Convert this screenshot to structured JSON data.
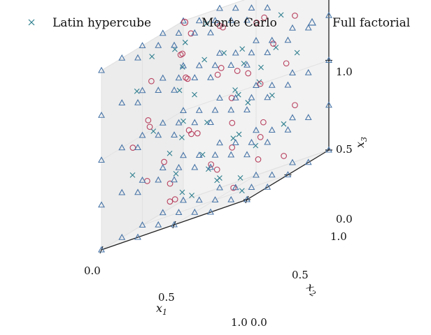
{
  "chart_data": {
    "type": "scatter",
    "projection": "3d",
    "title": "",
    "axes": {
      "x1": {
        "label": "x",
        "subscript": "1",
        "range": [
          0.0,
          1.0
        ],
        "ticks": [
          0.0,
          0.5,
          1.0
        ],
        "tick_labels": [
          "0.0",
          "0.5",
          "1.0"
        ]
      },
      "x2": {
        "label": "x",
        "subscript": "2",
        "range": [
          0.0,
          1.0
        ],
        "ticks": [
          0.0,
          0.5,
          1.0
        ],
        "tick_labels": [
          "0.0",
          "0.5",
          "1.0"
        ]
      },
      "x3": {
        "label": "x",
        "subscript": "3",
        "range": [
          0.0,
          1.0
        ],
        "ticks": [
          0.0,
          0.5,
          1.0
        ],
        "tick_labels": [
          "0.0",
          "0.5",
          "1.0"
        ]
      }
    },
    "grid": true,
    "legend_position": "top",
    "series": [
      {
        "name": "Latin hypercube",
        "marker": "x",
        "color": "#2f7f8f",
        "points": [
          [
            0.03,
            0.97,
            0.88
          ],
          [
            0.09,
            0.84,
            0.46
          ],
          [
            0.15,
            0.72,
            0.08
          ],
          [
            0.21,
            0.58,
            0.67
          ],
          [
            0.27,
            0.43,
            0.23
          ],
          [
            0.33,
            0.31,
            0.94
          ],
          [
            0.39,
            0.14,
            0.39
          ],
          [
            0.45,
            0.92,
            0.74
          ],
          [
            0.51,
            0.79,
            0.04
          ],
          [
            0.57,
            0.62,
            0.56
          ],
          [
            0.63,
            0.49,
            0.31
          ],
          [
            0.69,
            0.27,
            0.83
          ],
          [
            0.75,
            0.11,
            0.16
          ],
          [
            0.81,
            0.95,
            0.61
          ],
          [
            0.87,
            0.68,
            0.27
          ],
          [
            0.93,
            0.54,
            0.9
          ],
          [
            0.97,
            0.36,
            0.49
          ],
          [
            0.12,
            0.22,
            0.79
          ],
          [
            0.18,
            0.06,
            0.35
          ],
          [
            0.24,
            0.88,
            0.14
          ],
          [
            0.3,
            0.75,
            0.97
          ],
          [
            0.36,
            0.65,
            0.43
          ],
          [
            0.42,
            0.39,
            0.64
          ],
          [
            0.48,
            0.25,
            0.1
          ],
          [
            0.54,
            0.03,
            0.86
          ],
          [
            0.6,
            0.86,
            0.53
          ],
          [
            0.66,
            0.71,
            0.2
          ],
          [
            0.72,
            0.46,
            0.71
          ],
          [
            0.78,
            0.33,
            0.02
          ],
          [
            0.84,
            0.18,
            0.58
          ],
          [
            0.9,
            0.08,
            0.37
          ],
          [
            0.06,
            0.51,
            0.92
          ],
          [
            0.16,
            0.35,
            0.52
          ],
          [
            0.26,
            0.52,
            0.41
          ],
          [
            0.38,
            0.56,
            0.27
          ],
          [
            0.46,
            0.44,
            0.81
          ],
          [
            0.58,
            0.38,
            0.12
          ],
          [
            0.68,
            0.58,
            0.47
          ],
          [
            0.76,
            0.78,
            0.7
          ],
          [
            0.86,
            0.42,
            0.66
          ]
        ]
      },
      {
        "name": "Monte Carlo",
        "marker": "o",
        "color": "#b8405e",
        "points": [
          [
            0.12,
            0.88,
            0.93
          ],
          [
            0.81,
            0.22,
            0.71
          ],
          [
            0.44,
            0.63,
            0.15
          ],
          [
            0.93,
            0.71,
            0.35
          ],
          [
            0.27,
            0.11,
            0.58
          ],
          [
            0.59,
            0.94,
            0.87
          ],
          [
            0.05,
            0.47,
            0.24
          ],
          [
            0.71,
            0.35,
            0.05
          ],
          [
            0.36,
            0.78,
            0.66
          ],
          [
            0.18,
            0.29,
            0.81
          ],
          [
            0.87,
            0.05,
            0.45
          ],
          [
            0.52,
            0.52,
            0.96
          ],
          [
            0.64,
            0.84,
            0.3
          ],
          [
            0.23,
            0.66,
            0.42
          ],
          [
            0.95,
            0.41,
            0.77
          ],
          [
            0.41,
            0.17,
            0.12
          ],
          [
            0.76,
            0.59,
            0.55
          ],
          [
            0.08,
            0.91,
            0.68
          ],
          [
            0.33,
            0.38,
            0.89
          ],
          [
            0.68,
            0.13,
            0.25
          ],
          [
            0.49,
            0.72,
            0.51
          ],
          [
            0.15,
            0.57,
            0.07
          ],
          [
            0.84,
            0.87,
            0.83
          ],
          [
            0.29,
            0.25,
            0.34
          ],
          [
            0.57,
            0.45,
            0.73
          ],
          [
            0.97,
            0.19,
            0.18
          ],
          [
            0.03,
            0.33,
            0.47
          ],
          [
            0.62,
            0.69,
            0.62
          ],
          [
            0.38,
            0.92,
            0.21
          ],
          [
            0.79,
            0.49,
            0.91
          ],
          [
            0.21,
            0.8,
            0.37
          ],
          [
            0.54,
            0.07,
            0.79
          ],
          [
            0.91,
            0.61,
            0.1
          ],
          [
            0.46,
            0.28,
            0.44
          ],
          [
            0.14,
            0.74,
            0.85
          ],
          [
            0.73,
            0.96,
            0.57
          ],
          [
            0.31,
            0.02,
            0.63
          ],
          [
            0.66,
            0.31,
            0.97
          ],
          [
            0.01,
            0.82,
            0.14
          ],
          [
            0.89,
            0.36,
            0.28
          ]
        ]
      },
      {
        "name": "Full factorial",
        "marker": "^",
        "color": "#4a76a8",
        "levels": [
          0.0,
          0.25,
          0.5,
          0.75,
          1.0
        ],
        "grid_design": "all combinations of levels on x1, x2, x3"
      }
    ]
  }
}
